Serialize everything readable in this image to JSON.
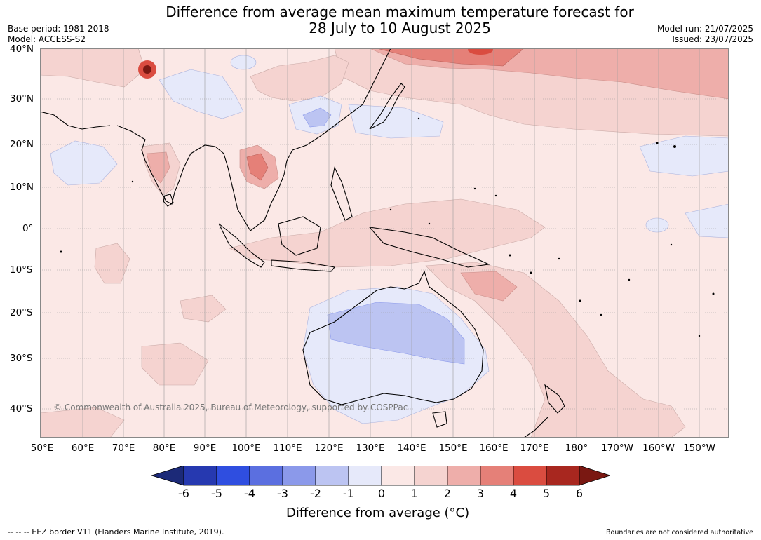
{
  "header": {
    "title_line1": "Difference from average mean maximum temperature forecast for",
    "title_line2": "28 July to 10 August 2025",
    "base_period": "Base period: 1981-2018",
    "model": "Model: ACCESS-S2",
    "model_run": "Model run: 21/07/2025",
    "issued": "Issued: 23/07/2025"
  },
  "map": {
    "lat_labels": [
      "40°N",
      "30°N",
      "20°N",
      "10°N",
      "0°",
      "10°S",
      "20°S",
      "30°S",
      "40°S"
    ],
    "lon_labels": [
      "50°E",
      "60°E",
      "70°E",
      "80°E",
      "90°E",
      "100°E",
      "110°E",
      "120°E",
      "130°E",
      "140°E",
      "150°E",
      "160°E",
      "170°E",
      "180°",
      "170°W",
      "160°W",
      "150°W"
    ],
    "copyright": "© Commonwealth of Australia 2025, Bureau of Meteorology, supported by COSPPac"
  },
  "colorbar": {
    "ticks": [
      "-6",
      "-5",
      "-4",
      "-3",
      "-2",
      "-1",
      "0",
      "1",
      "2",
      "3",
      "4",
      "5",
      "6"
    ],
    "colors": [
      "#1c2a78",
      "#2639b0",
      "#2f4ee0",
      "#5b6fe0",
      "#8b99ea",
      "#bcc4f2",
      "#e6e9fa",
      "#fbe8e6",
      "#f5d3d0",
      "#eeaeaa",
      "#e58078",
      "#da4c40",
      "#a8271f",
      "#7a1812"
    ],
    "title": "Difference from average (°C)"
  },
  "footer": {
    "eez_note": "--  --  -- EEZ border V11 (Flanders Marine Institute, 2019).",
    "boundary_note": "Boundaries are not considered authoritative"
  }
}
